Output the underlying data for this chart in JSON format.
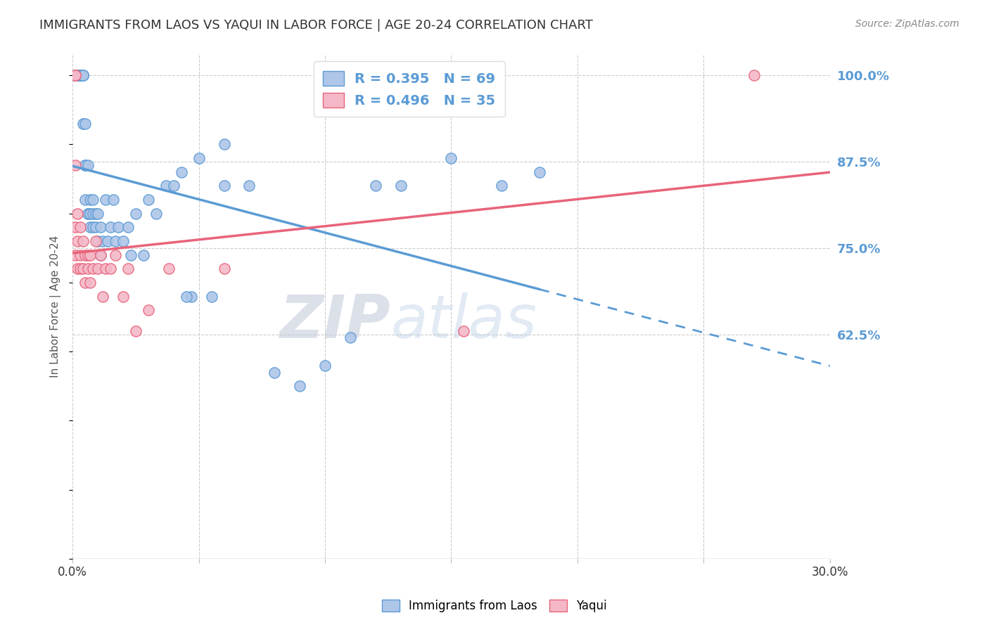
{
  "title": "IMMIGRANTS FROM LAOS VS YAQUI IN LABOR FORCE | AGE 20-24 CORRELATION CHART",
  "source": "Source: ZipAtlas.com",
  "ylabel": "In Labor Force | Age 20-24",
  "xlim": [
    0.0,
    0.3
  ],
  "ylim": [
    0.3,
    1.03
  ],
  "xticks": [
    0.0,
    0.05,
    0.1,
    0.15,
    0.2,
    0.25,
    0.3
  ],
  "xticklabels": [
    "0.0%",
    "",
    "",
    "",
    "",
    "",
    "30.0%"
  ],
  "yticks_right": [
    0.625,
    0.75,
    0.875,
    1.0
  ],
  "ytick_right_labels": [
    "62.5%",
    "75.0%",
    "87.5%",
    "100.0%"
  ],
  "right_axis_color": "#5b9bd5",
  "laos_color": "#aec6e8",
  "laos_edge_color": "#5b9bd5",
  "yaqui_color": "#f4b8c8",
  "yaqui_edge_color": "#e8647a",
  "trendline_laos_color": "#5b9bd5",
  "trendline_yaqui_color": "#e8647a",
  "legend_laos_label": "R = 0.395   N = 69",
  "legend_yaqui_label": "R = 0.496   N = 35",
  "watermark_zip": "ZIP",
  "watermark_atlas": "atlas",
  "background_color": "#ffffff",
  "grid_color": "#cccccc",
  "laos_x": [
    0.001,
    0.001,
    0.001,
    0.001,
    0.002,
    0.002,
    0.002,
    0.002,
    0.003,
    0.003,
    0.003,
    0.003,
    0.003,
    0.004,
    0.004,
    0.004,
    0.004,
    0.005,
    0.005,
    0.005,
    0.005,
    0.006,
    0.006,
    0.006,
    0.007,
    0.007,
    0.007,
    0.008,
    0.008,
    0.008,
    0.009,
    0.009,
    0.01,
    0.01,
    0.011,
    0.011,
    0.012,
    0.013,
    0.014,
    0.015,
    0.016,
    0.017,
    0.018,
    0.02,
    0.022,
    0.023,
    0.025,
    0.028,
    0.03,
    0.033,
    0.037,
    0.04,
    0.043,
    0.047,
    0.05,
    0.055,
    0.06,
    0.07,
    0.08,
    0.09,
    0.1,
    0.11,
    0.13,
    0.15,
    0.17,
    0.185,
    0.06,
    0.12,
    0.045
  ],
  "laos_y": [
    1.0,
    1.0,
    1.0,
    1.0,
    1.0,
    1.0,
    1.0,
    1.0,
    1.0,
    1.0,
    1.0,
    1.0,
    1.0,
    1.0,
    1.0,
    1.0,
    0.93,
    0.93,
    0.87,
    0.87,
    0.82,
    0.87,
    0.8,
    0.8,
    0.82,
    0.8,
    0.78,
    0.82,
    0.78,
    0.8,
    0.8,
    0.78,
    0.8,
    0.76,
    0.78,
    0.74,
    0.76,
    0.82,
    0.76,
    0.78,
    0.82,
    0.76,
    0.78,
    0.76,
    0.78,
    0.74,
    0.8,
    0.74,
    0.82,
    0.8,
    0.84,
    0.84,
    0.86,
    0.68,
    0.88,
    0.68,
    0.84,
    0.84,
    0.57,
    0.55,
    0.58,
    0.62,
    0.84,
    0.88,
    0.84,
    0.86,
    0.9,
    0.84,
    0.68
  ],
  "laos_trend_solid_end": 0.185,
  "yaqui_x": [
    0.001,
    0.001,
    0.001,
    0.001,
    0.001,
    0.002,
    0.002,
    0.002,
    0.003,
    0.003,
    0.003,
    0.004,
    0.004,
    0.005,
    0.005,
    0.006,
    0.006,
    0.007,
    0.007,
    0.008,
    0.009,
    0.01,
    0.011,
    0.012,
    0.013,
    0.015,
    0.017,
    0.02,
    0.022,
    0.025,
    0.03,
    0.038,
    0.06,
    0.155,
    0.27
  ],
  "yaqui_y": [
    1.0,
    1.0,
    0.87,
    0.78,
    0.74,
    0.8,
    0.76,
    0.72,
    0.78,
    0.74,
    0.72,
    0.76,
    0.72,
    0.74,
    0.7,
    0.74,
    0.72,
    0.74,
    0.7,
    0.72,
    0.76,
    0.72,
    0.74,
    0.68,
    0.72,
    0.72,
    0.74,
    0.68,
    0.72,
    0.63,
    0.66,
    0.72,
    0.72,
    0.63,
    1.0
  ]
}
